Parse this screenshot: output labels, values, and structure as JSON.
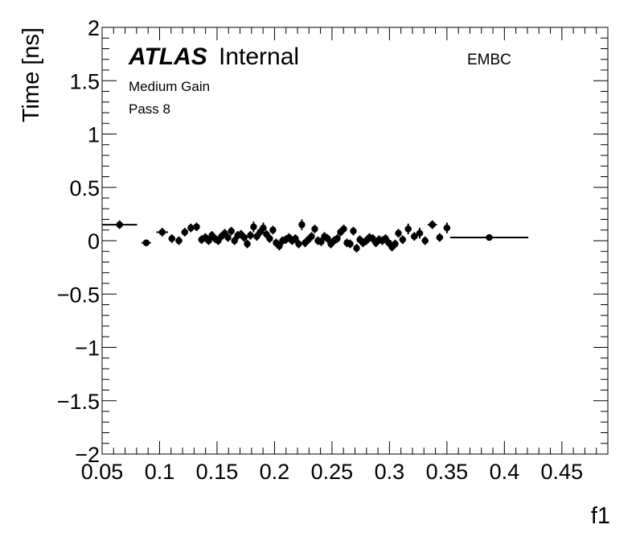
{
  "chart_data": {
    "type": "scatter",
    "xlabel": "f1",
    "ylabel": "Time [ns]",
    "xlim": [
      0.05,
      0.49
    ],
    "ylim": [
      -2,
      2
    ],
    "x_ticks": [
      "0.05",
      "0.1",
      "0.15",
      "0.2",
      "0.25",
      "0.3",
      "0.35",
      "0.4",
      "0.45"
    ],
    "y_ticks": [
      "2",
      "1.5",
      "1",
      "0.5",
      "0",
      "−0.5",
      "−1",
      "−1.5",
      "−2"
    ],
    "grid": false,
    "labels": {
      "atlas": "ATLAS",
      "atlas_status": "Internal",
      "region": "EMBC",
      "gain": "Medium Gain",
      "pass": "Pass 8"
    },
    "series": [
      {
        "points": [
          {
            "x": 0.0652,
            "xerr": 0.0152,
            "y": 0.15,
            "yerr": 0.04
          },
          {
            "x": 0.0884,
            "xerr": 0.004,
            "y": -0.02,
            "yerr": 0.03
          },
          {
            "x": 0.1023,
            "xerr": 0.005,
            "y": 0.08,
            "yerr": 0.04
          },
          {
            "x": 0.1107,
            "xerr": 0.003,
            "y": 0.02,
            "yerr": 0.04
          },
          {
            "x": 0.1168,
            "xerr": 0.003,
            "y": 0.0,
            "yerr": 0.04
          },
          {
            "x": 0.1219,
            "xerr": 0.003,
            "y": 0.08,
            "yerr": 0.04
          },
          {
            "x": 0.1272,
            "xerr": 0.002,
            "y": 0.12,
            "yerr": 0.04
          },
          {
            "x": 0.1322,
            "xerr": 0.002,
            "y": 0.13,
            "yerr": 0.04
          },
          {
            "x": 0.1365,
            "xerr": 0.002,
            "y": 0.01,
            "yerr": 0.04
          },
          {
            "x": 0.1398,
            "xerr": 0.002,
            "y": 0.03,
            "yerr": 0.04
          },
          {
            "x": 0.1427,
            "xerr": 0.002,
            "y": 0.0,
            "yerr": 0.04
          },
          {
            "x": 0.1455,
            "xerr": 0.002,
            "y": 0.05,
            "yerr": 0.04
          },
          {
            "x": 0.1482,
            "xerr": 0.002,
            "y": 0.02,
            "yerr": 0.04
          },
          {
            "x": 0.151,
            "xerr": 0.002,
            "y": 0.0,
            "yerr": 0.04
          },
          {
            "x": 0.1538,
            "xerr": 0.002,
            "y": 0.04,
            "yerr": 0.04
          },
          {
            "x": 0.1567,
            "xerr": 0.002,
            "y": 0.07,
            "yerr": 0.04
          },
          {
            "x": 0.1595,
            "xerr": 0.002,
            "y": 0.03,
            "yerr": 0.04
          },
          {
            "x": 0.1624,
            "xerr": 0.002,
            "y": 0.09,
            "yerr": 0.04
          },
          {
            "x": 0.1652,
            "xerr": 0.002,
            "y": 0.0,
            "yerr": 0.04
          },
          {
            "x": 0.168,
            "xerr": 0.002,
            "y": 0.05,
            "yerr": 0.04
          },
          {
            "x": 0.1708,
            "xerr": 0.002,
            "y": 0.06,
            "yerr": 0.04
          },
          {
            "x": 0.1736,
            "xerr": 0.002,
            "y": 0.03,
            "yerr": 0.04
          },
          {
            "x": 0.1763,
            "xerr": 0.002,
            "y": -0.03,
            "yerr": 0.04
          },
          {
            "x": 0.179,
            "xerr": 0.002,
            "y": 0.05,
            "yerr": 0.04
          },
          {
            "x": 0.1818,
            "xerr": 0.002,
            "y": 0.13,
            "yerr": 0.05
          },
          {
            "x": 0.1846,
            "xerr": 0.002,
            "y": 0.04,
            "yerr": 0.04
          },
          {
            "x": 0.1874,
            "xerr": 0.002,
            "y": 0.08,
            "yerr": 0.04
          },
          {
            "x": 0.1902,
            "xerr": 0.002,
            "y": 0.12,
            "yerr": 0.05
          },
          {
            "x": 0.193,
            "xerr": 0.002,
            "y": 0.06,
            "yerr": 0.04
          },
          {
            "x": 0.1958,
            "xerr": 0.002,
            "y": 0.02,
            "yerr": 0.04
          },
          {
            "x": 0.1986,
            "xerr": 0.002,
            "y": 0.1,
            "yerr": 0.04
          },
          {
            "x": 0.2014,
            "xerr": 0.002,
            "y": -0.02,
            "yerr": 0.04
          },
          {
            "x": 0.2042,
            "xerr": 0.002,
            "y": -0.05,
            "yerr": 0.04
          },
          {
            "x": 0.207,
            "xerr": 0.002,
            "y": 0.0,
            "yerr": 0.04
          },
          {
            "x": 0.2098,
            "xerr": 0.002,
            "y": 0.01,
            "yerr": 0.04
          },
          {
            "x": 0.2126,
            "xerr": 0.002,
            "y": 0.03,
            "yerr": 0.04
          },
          {
            "x": 0.2154,
            "xerr": 0.002,
            "y": 0.0,
            "yerr": 0.04
          },
          {
            "x": 0.2182,
            "xerr": 0.002,
            "y": 0.02,
            "yerr": 0.04
          },
          {
            "x": 0.221,
            "xerr": 0.002,
            "y": -0.03,
            "yerr": 0.04
          },
          {
            "x": 0.2238,
            "xerr": 0.002,
            "y": 0.15,
            "yerr": 0.05
          },
          {
            "x": 0.2266,
            "xerr": 0.002,
            "y": -0.02,
            "yerr": 0.04
          },
          {
            "x": 0.2294,
            "xerr": 0.002,
            "y": 0.01,
            "yerr": 0.04
          },
          {
            "x": 0.2322,
            "xerr": 0.002,
            "y": 0.04,
            "yerr": 0.04
          },
          {
            "x": 0.235,
            "xerr": 0.002,
            "y": 0.11,
            "yerr": 0.04
          },
          {
            "x": 0.2378,
            "xerr": 0.002,
            "y": 0.0,
            "yerr": 0.04
          },
          {
            "x": 0.2406,
            "xerr": 0.002,
            "y": -0.01,
            "yerr": 0.04
          },
          {
            "x": 0.2434,
            "xerr": 0.002,
            "y": 0.04,
            "yerr": 0.04
          },
          {
            "x": 0.2462,
            "xerr": 0.002,
            "y": 0.02,
            "yerr": 0.04
          },
          {
            "x": 0.249,
            "xerr": 0.002,
            "y": -0.03,
            "yerr": 0.04
          },
          {
            "x": 0.2518,
            "xerr": 0.002,
            "y": 0.0,
            "yerr": 0.04
          },
          {
            "x": 0.2546,
            "xerr": 0.002,
            "y": 0.02,
            "yerr": 0.04
          },
          {
            "x": 0.2574,
            "xerr": 0.002,
            "y": 0.08,
            "yerr": 0.04
          },
          {
            "x": 0.2602,
            "xerr": 0.002,
            "y": 0.11,
            "yerr": 0.04
          },
          {
            "x": 0.263,
            "xerr": 0.002,
            "y": -0.02,
            "yerr": 0.04
          },
          {
            "x": 0.2658,
            "xerr": 0.002,
            "y": -0.03,
            "yerr": 0.04
          },
          {
            "x": 0.2686,
            "xerr": 0.002,
            "y": 0.09,
            "yerr": 0.04
          },
          {
            "x": 0.2714,
            "xerr": 0.002,
            "y": -0.07,
            "yerr": 0.04
          },
          {
            "x": 0.2742,
            "xerr": 0.002,
            "y": 0.01,
            "yerr": 0.04
          },
          {
            "x": 0.277,
            "xerr": 0.002,
            "y": -0.02,
            "yerr": 0.04
          },
          {
            "x": 0.2798,
            "xerr": 0.002,
            "y": 0.0,
            "yerr": 0.04
          },
          {
            "x": 0.2826,
            "xerr": 0.002,
            "y": 0.03,
            "yerr": 0.04
          },
          {
            "x": 0.2854,
            "xerr": 0.002,
            "y": 0.02,
            "yerr": 0.04
          },
          {
            "x": 0.2882,
            "xerr": 0.002,
            "y": -0.02,
            "yerr": 0.04
          },
          {
            "x": 0.291,
            "xerr": 0.002,
            "y": 0.01,
            "yerr": 0.04
          },
          {
            "x": 0.2938,
            "xerr": 0.002,
            "y": 0.0,
            "yerr": 0.04
          },
          {
            "x": 0.2966,
            "xerr": 0.002,
            "y": 0.02,
            "yerr": 0.04
          },
          {
            "x": 0.2994,
            "xerr": 0.002,
            "y": -0.02,
            "yerr": 0.04
          },
          {
            "x": 0.3022,
            "xerr": 0.002,
            "y": -0.06,
            "yerr": 0.04
          },
          {
            "x": 0.305,
            "xerr": 0.002,
            "y": -0.03,
            "yerr": 0.04
          },
          {
            "x": 0.3078,
            "xerr": 0.002,
            "y": 0.07,
            "yerr": 0.04
          },
          {
            "x": 0.3115,
            "xerr": 0.003,
            "y": 0.01,
            "yerr": 0.04
          },
          {
            "x": 0.3163,
            "xerr": 0.003,
            "y": 0.11,
            "yerr": 0.05
          },
          {
            "x": 0.3216,
            "xerr": 0.003,
            "y": 0.04,
            "yerr": 0.04
          },
          {
            "x": 0.3263,
            "xerr": 0.003,
            "y": 0.07,
            "yerr": 0.05
          },
          {
            "x": 0.331,
            "xerr": 0.003,
            "y": 0.0,
            "yerr": 0.04
          },
          {
            "x": 0.3373,
            "xerr": 0.004,
            "y": 0.15,
            "yerr": 0.04
          },
          {
            "x": 0.3437,
            "xerr": 0.003,
            "y": 0.03,
            "yerr": 0.04
          },
          {
            "x": 0.35,
            "xerr": 0.003,
            "y": 0.12,
            "yerr": 0.05
          },
          {
            "x": 0.3868,
            "xerr": 0.034,
            "y": 0.03,
            "yerr": 0.02
          }
        ]
      }
    ]
  }
}
